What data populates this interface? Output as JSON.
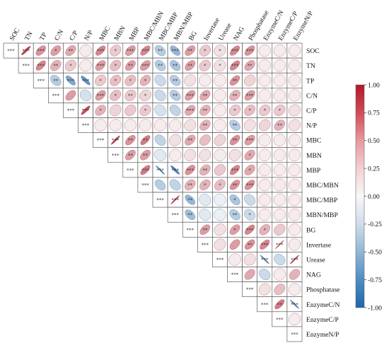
{
  "chart_data": {
    "type": "heatmap",
    "style": "upper-triangle ellipse correlation matrix",
    "variables": [
      "SOC",
      "TN",
      "TP",
      "C/N",
      "C/P",
      "N/P",
      "MBC",
      "MBN",
      "MBP",
      "MBC/MBN",
      "MBC/MBP",
      "MBN/MBP",
      "BG",
      "Invertase",
      "Urease",
      "NAG",
      "Phosphatase",
      "EnzymeC/N",
      "EnzymeC/P",
      "EnzymeN/P"
    ],
    "matrix": [
      [
        1.0,
        0.8,
        0.45,
        0.4,
        0.35,
        0.05,
        0.5,
        0.2,
        0.4,
        0.5,
        -0.3,
        -0.45,
        0.4,
        0.2,
        0.1,
        0.5,
        0.45,
        0.05,
        0.05,
        0.05
      ],
      [
        null,
        1.0,
        0.5,
        0.3,
        0.2,
        0.05,
        0.4,
        0.25,
        0.4,
        0.4,
        -0.3,
        -0.35,
        0.4,
        0.2,
        0.1,
        0.5,
        0.35,
        0.05,
        0.05,
        0.05
      ],
      [
        null,
        null,
        1.0,
        -0.3,
        -0.55,
        -0.7,
        0.2,
        0.25,
        0.25,
        0.3,
        -0.2,
        -0.3,
        0.1,
        0.05,
        0.05,
        0.45,
        0.15,
        0.05,
        0.05,
        0.05
      ],
      [
        null,
        null,
        null,
        1.0,
        0.4,
        -0.15,
        0.4,
        0.25,
        0.2,
        0.15,
        -0.2,
        -0.3,
        0.4,
        0.35,
        0.05,
        0.3,
        0.4,
        0.05,
        0.05,
        0.05
      ],
      [
        null,
        null,
        null,
        null,
        1.0,
        0.75,
        0.3,
        0.15,
        0.2,
        0.2,
        -0.15,
        -0.25,
        0.35,
        0.3,
        0.05,
        0.2,
        0.25,
        0.2,
        0.2,
        0.1
      ],
      [
        null,
        null,
        null,
        null,
        null,
        1.0,
        0.05,
        0.05,
        0.05,
        0.05,
        0.05,
        0.05,
        0.1,
        0.3,
        0.05,
        -0.3,
        0.1,
        0.15,
        0.3,
        0.1
      ],
      [
        null,
        null,
        null,
        null,
        null,
        null,
        1.0,
        0.85,
        0.45,
        0.55,
        -0.25,
        0.1,
        0.35,
        0.25,
        0.15,
        0.45,
        0.4,
        0.05,
        0.05,
        0.05
      ],
      [
        null,
        null,
        null,
        null,
        null,
        null,
        null,
        1.0,
        0.4,
        0.4,
        -0.1,
        0.05,
        0.1,
        0.1,
        0.05,
        0.1,
        0.35,
        0.05,
        0.05,
        0.05
      ],
      [
        null,
        null,
        null,
        null,
        null,
        null,
        null,
        null,
        1.0,
        0.55,
        -0.9,
        -0.8,
        0.45,
        0.3,
        0.2,
        0.5,
        0.35,
        0.05,
        0.05,
        0.05
      ],
      [
        null,
        null,
        null,
        null,
        null,
        null,
        null,
        null,
        null,
        1.0,
        -0.3,
        -0.25,
        0.3,
        0.3,
        0.25,
        0.45,
        0.45,
        0.05,
        0.05,
        0.05
      ],
      [
        null,
        null,
        null,
        null,
        null,
        null,
        null,
        null,
        null,
        null,
        1.0,
        0.9,
        -0.45,
        -0.1,
        -0.05,
        -0.35,
        -0.2,
        0.05,
        0.05,
        0.05
      ],
      [
        null,
        null,
        null,
        null,
        null,
        null,
        null,
        null,
        null,
        null,
        null,
        1.0,
        -0.4,
        -0.1,
        -0.05,
        -0.3,
        -0.2,
        0.05,
        0.05,
        0.05
      ],
      [
        null,
        null,
        null,
        null,
        null,
        null,
        null,
        null,
        null,
        null,
        null,
        null,
        1.0,
        0.4,
        0.1,
        0.4,
        0.5,
        0.3,
        0.2,
        0.05
      ],
      [
        null,
        null,
        null,
        null,
        null,
        null,
        null,
        null,
        null,
        null,
        null,
        null,
        null,
        1.0,
        0.1,
        0.4,
        0.45,
        0.5,
        0.95,
        0.05
      ],
      [
        null,
        null,
        null,
        null,
        null,
        null,
        null,
        null,
        null,
        null,
        null,
        null,
        null,
        null,
        1.0,
        0.05,
        0.1,
        -0.9,
        -0.2,
        0.9
      ],
      [
        null,
        null,
        null,
        null,
        null,
        null,
        null,
        null,
        null,
        null,
        null,
        null,
        null,
        null,
        null,
        1.0,
        0.35,
        -0.2,
        0.05,
        0.3
      ],
      [
        null,
        null,
        null,
        null,
        null,
        null,
        null,
        null,
        null,
        null,
        null,
        null,
        null,
        null,
        null,
        null,
        1.0,
        0.1,
        0.25,
        0.05
      ],
      [
        null,
        null,
        null,
        null,
        null,
        null,
        null,
        null,
        null,
        null,
        null,
        null,
        null,
        null,
        null,
        null,
        null,
        1.0,
        0.55,
        -0.9
      ],
      [
        null,
        null,
        null,
        null,
        null,
        null,
        null,
        null,
        null,
        null,
        null,
        null,
        null,
        null,
        null,
        null,
        null,
        null,
        1.0,
        0.05
      ],
      [
        null,
        null,
        null,
        null,
        null,
        null,
        null,
        null,
        null,
        null,
        null,
        null,
        null,
        null,
        null,
        null,
        null,
        null,
        null,
        1.0
      ]
    ],
    "significance": [
      [
        "***",
        "***",
        "***",
        "*",
        "**",
        "",
        "***",
        "*",
        "***",
        "***",
        "**",
        "***",
        "**",
        "*",
        "*",
        "***",
        "***",
        "",
        "",
        ""
      ],
      [
        "",
        "***",
        "***",
        "**",
        "*",
        "",
        "***",
        "*",
        "**",
        "***",
        "**",
        "**",
        "**",
        "*",
        "*",
        "***",
        "**",
        "",
        "",
        ""
      ],
      [
        "",
        "",
        "***",
        "**",
        "***",
        "***",
        "*",
        "*",
        "*",
        "*",
        "",
        "**",
        "",
        "",
        "",
        "**",
        "",
        "",
        "",
        ""
      ],
      [
        "",
        "",
        "",
        "***",
        "",
        "",
        "***",
        "*",
        "**",
        "*",
        "",
        "**",
        "***",
        "**",
        "",
        "**",
        "***",
        "",
        "",
        ""
      ],
      [
        "",
        "",
        "",
        "",
        "***",
        "***",
        "*",
        "",
        "",
        "*",
        "",
        "",
        "***",
        "**",
        "",
        "*",
        "*",
        "*",
        "*",
        ""
      ],
      [
        "",
        "",
        "",
        "",
        "",
        "***",
        "",
        "",
        "",
        "",
        "",
        "",
        "",
        "**",
        "",
        "**",
        "",
        "",
        "**",
        ""
      ],
      [
        "",
        "",
        "",
        "",
        "",
        "",
        "***",
        "***",
        "**",
        "**",
        "",
        "",
        "**",
        "",
        "",
        "**",
        "***",
        "",
        "",
        ""
      ],
      [
        "",
        "",
        "",
        "",
        "",
        "",
        "",
        "***",
        "**",
        "**",
        "",
        "",
        "",
        "",
        "",
        "",
        "*",
        "",
        "",
        ""
      ],
      [
        "",
        "",
        "",
        "",
        "",
        "",
        "",
        "",
        "***",
        "***",
        "***",
        "***",
        "***",
        "**",
        "",
        "***",
        "*",
        "",
        "",
        ""
      ],
      [
        "",
        "",
        "",
        "",
        "",
        "",
        "",
        "",
        "",
        "***",
        "",
        "",
        "**",
        "*",
        "*",
        "**",
        "***",
        "",
        "",
        ""
      ],
      [
        "",
        "",
        "",
        "",
        "",
        "",
        "",
        "",
        "",
        "",
        "***",
        "***",
        "**",
        "",
        "",
        "*",
        "",
        "",
        "",
        ""
      ],
      [
        "",
        "",
        "",
        "",
        "",
        "",
        "",
        "",
        "",
        "",
        "",
        "***",
        "**",
        "",
        "",
        "**",
        "*",
        "",
        "",
        ""
      ],
      [
        "",
        "",
        "",
        "",
        "",
        "",
        "",
        "",
        "",
        "",
        "",
        "",
        "***",
        "**",
        "",
        "*",
        "***",
        "*",
        "",
        ""
      ],
      [
        "",
        "",
        "",
        "",
        "",
        "",
        "",
        "",
        "",
        "",
        "",
        "",
        "",
        "***",
        "",
        "",
        "**",
        "***",
        "***",
        ""
      ],
      [
        "",
        "",
        "",
        "",
        "",
        "",
        "",
        "",
        "",
        "",
        "",
        "",
        "",
        "",
        "***",
        "",
        "",
        "***",
        "",
        "***"
      ],
      [
        "",
        "",
        "",
        "",
        "",
        "",
        "",
        "",
        "",
        "",
        "",
        "",
        "",
        "",
        "",
        "***",
        "",
        "",
        "",
        ""
      ],
      [
        "",
        "",
        "",
        "",
        "",
        "",
        "",
        "",
        "",
        "",
        "",
        "",
        "",
        "",
        "",
        "",
        "***",
        "",
        "",
        ""
      ],
      [
        "",
        "",
        "",
        "",
        "",
        "",
        "",
        "",
        "",
        "",
        "",
        "",
        "",
        "",
        "",
        "",
        "",
        "***",
        "**",
        "***"
      ],
      [
        "",
        "",
        "",
        "",
        "",
        "",
        "",
        "",
        "",
        "",
        "",
        "",
        "",
        "",
        "",
        "",
        "",
        "",
        "***",
        ""
      ],
      [
        "",
        "",
        "",
        "",
        "",
        "",
        "",
        "",
        "",
        "",
        "",
        "",
        "",
        "",
        "",
        "",
        "",
        "",
        "",
        "***"
      ]
    ],
    "colorbar": {
      "ticks": [
        "1.00",
        "0.75",
        "0.50",
        "0.25",
        "0.00",
        "-0.25",
        "-0.50",
        "-0.75",
        "-1.00"
      ],
      "range": [
        -1,
        1
      ],
      "colors": {
        "negative": "#2166ac",
        "neutral": "#f7f7f7",
        "positive": "#b2182b"
      }
    }
  }
}
